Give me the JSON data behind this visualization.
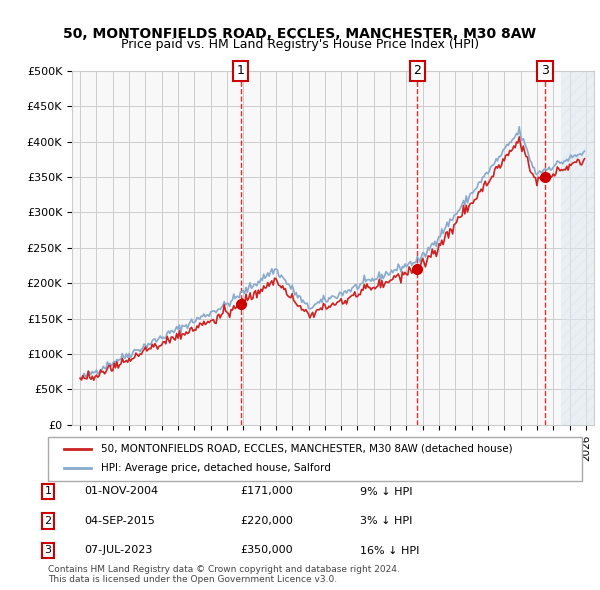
{
  "title": "50, MONTONFIELDS ROAD, ECCLES, MANCHESTER, M30 8AW",
  "subtitle": "Price paid vs. HM Land Registry's House Price Index (HPI)",
  "legend_label_red": "50, MONTONFIELDS ROAD, ECCLES, MANCHESTER, M30 8AW (detached house)",
  "legend_label_blue": "HPI: Average price, detached house, Salford",
  "transaction_labels": [
    "1",
    "2",
    "3"
  ],
  "transaction_dates": [
    "01-NOV-2004",
    "04-SEP-2015",
    "07-JUL-2023"
  ],
  "transaction_prices": [
    171000,
    220000,
    350000
  ],
  "transaction_pct": [
    "9% ↓ HPI",
    "3% ↓ HPI",
    "16% ↓ HPI"
  ],
  "footer": "Contains HM Land Registry data © Crown copyright and database right 2024.\nThis data is licensed under the Open Government Licence v3.0.",
  "ylim": [
    0,
    500000
  ],
  "yticks": [
    0,
    50000,
    100000,
    150000,
    200000,
    250000,
    300000,
    350000,
    400000,
    450000,
    500000
  ],
  "hatch_color": "#c8d8e8",
  "plot_bg": "#f0f4f8",
  "grid_color": "#cccccc",
  "red_line_color": "#cc0000",
  "blue_line_color": "#6699cc"
}
